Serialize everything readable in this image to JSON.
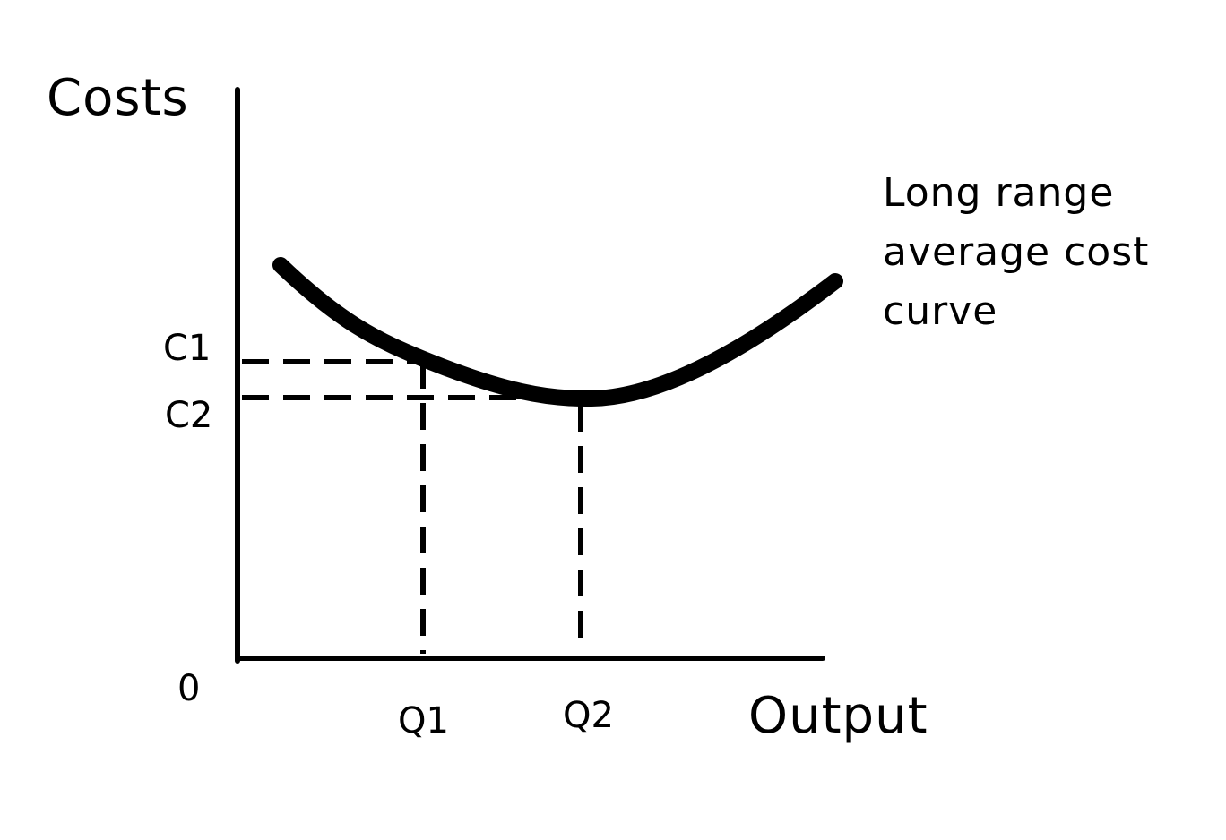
{
  "diagram": {
    "y_axis_label": "Costs",
    "x_axis_label": "Output",
    "origin_label": "0",
    "cost_levels": [
      {
        "label": "C1"
      },
      {
        "label": "C2"
      }
    ],
    "output_levels": [
      {
        "label": "Q1"
      },
      {
        "label": "Q2"
      }
    ],
    "curve_label_lines": [
      "Long range",
      "average cost",
      "curve"
    ],
    "stroke_color": "#000000"
  }
}
